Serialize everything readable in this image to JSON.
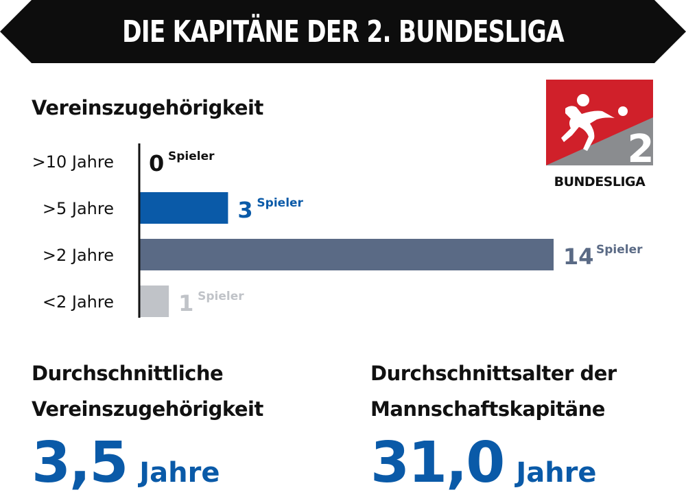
{
  "header": {
    "title": "DIE KAPITÄNE DER 2. BUNDESLIGA"
  },
  "logo": {
    "number": "2",
    "wordmark": "BUNDESLIGA"
  },
  "colors": {
    "banner": "#0d0d0d",
    "bar_5": "#0a5aa8",
    "bar_2": "#5a6a85",
    "bar_lt2": "#c0c3c8",
    "bar_10": "#111111",
    "accent_blue": "#0a5aa8",
    "logo_red": "#d0202a",
    "logo_grey": "#8a8c8f"
  },
  "chart_data": {
    "type": "bar",
    "orientation": "horizontal",
    "title": "Vereinszugehörigkeit",
    "categories": [
      ">10 Jahre",
      ">5 Jahre",
      ">2 Jahre",
      "<2 Jahre"
    ],
    "values": [
      0,
      3,
      14,
      1
    ],
    "unit_label": "Spieler",
    "bar_colors": [
      "#111111",
      "#0a5aa8",
      "#5a6a85",
      "#c0c3c8"
    ],
    "xlim": [
      0,
      14
    ],
    "grid": false,
    "legend": "none"
  },
  "stats": [
    {
      "label_line1": "Durchschnittliche",
      "label_line2": "Vereinszugehörigkeit",
      "value": "3,5",
      "unit": "Jahre"
    },
    {
      "label_line1": "Durchschnittsalter der",
      "label_line2": "Mannschaftskapitäne",
      "value": "31,0",
      "unit": "Jahre"
    }
  ]
}
